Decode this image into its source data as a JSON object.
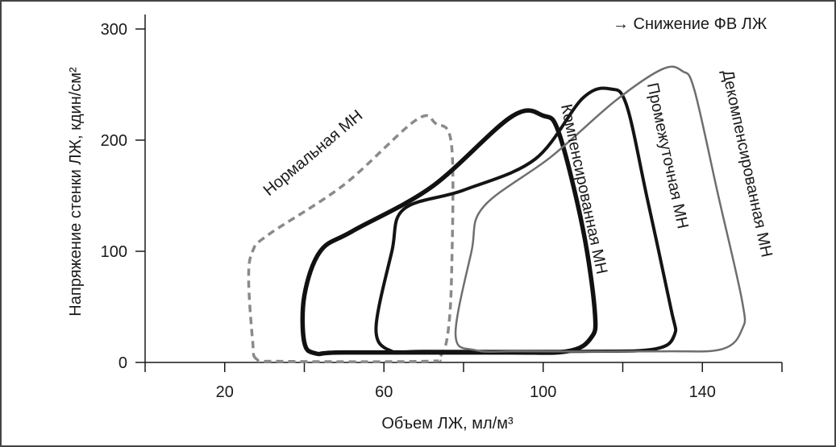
{
  "chart_data": {
    "type": "line",
    "title": "",
    "legend_note": "→ Снижение ФВ ЛЖ",
    "xlabel": "Объем ЛЖ, мл/м³",
    "ylabel": "Напряжение стенки ЛЖ, кдин/см²",
    "xlim": [
      0,
      160
    ],
    "ylim": [
      0,
      300
    ],
    "x_ticks": [
      20,
      60,
      100,
      140
    ],
    "x_tick_marks": [
      0,
      20,
      40,
      60,
      80,
      100,
      120,
      140,
      160
    ],
    "y_ticks": [
      0,
      100,
      200,
      300
    ],
    "grid": false,
    "series": [
      {
        "name": "Нормальная МН",
        "style": "dashed",
        "color": "#8a8a8a",
        "points": [
          [
            28,
            3
          ],
          [
            27,
            20
          ],
          [
            26,
            75
          ],
          [
            27,
            100
          ],
          [
            31,
            115
          ],
          [
            50,
            160
          ],
          [
            68,
            218
          ],
          [
            73,
            215
          ],
          [
            77,
            195
          ],
          [
            77,
            80
          ],
          [
            76,
            25
          ],
          [
            74,
            5
          ],
          [
            70,
            1
          ],
          [
            34,
            1
          ]
        ]
      },
      {
        "name": "Компенсированная МН",
        "style": "solid-thick",
        "color": "#111111",
        "points": [
          [
            43,
            8
          ],
          [
            40,
            18
          ],
          [
            40,
            60
          ],
          [
            44,
            100
          ],
          [
            52,
            118
          ],
          [
            72,
            158
          ],
          [
            92,
            221
          ],
          [
            100,
            222
          ],
          [
            104,
            206
          ],
          [
            110,
            120
          ],
          [
            113,
            45
          ],
          [
            112,
            22
          ],
          [
            106,
            10
          ],
          [
            90,
            9
          ],
          [
            50,
            9
          ]
        ]
      },
      {
        "name": "Промежуточная МН",
        "style": "solid",
        "color": "#141414",
        "points": [
          [
            62,
            10
          ],
          [
            58,
            30
          ],
          [
            62,
            100
          ],
          [
            65,
            138
          ],
          [
            80,
            155
          ],
          [
            98,
            183
          ],
          [
            110,
            238
          ],
          [
            117,
            246
          ],
          [
            121,
            231
          ],
          [
            126,
            150
          ],
          [
            132,
            50
          ],
          [
            133,
            25
          ],
          [
            128,
            12
          ],
          [
            110,
            10
          ],
          [
            70,
            10
          ]
        ]
      },
      {
        "name": "Декомпенсированная МН",
        "style": "solid-thin",
        "color": "#6e6e6e",
        "points": [
          [
            83,
            11
          ],
          [
            78,
            25
          ],
          [
            82,
            100
          ],
          [
            85,
            140
          ],
          [
            102,
            185
          ],
          [
            118,
            235
          ],
          [
            130,
            264
          ],
          [
            135,
            262
          ],
          [
            138,
            245
          ],
          [
            144,
            150
          ],
          [
            150,
            55
          ],
          [
            150,
            30
          ],
          [
            145,
            12
          ],
          [
            130,
            10
          ],
          [
            95,
            10
          ]
        ]
      }
    ],
    "annotations": [
      {
        "text": "Нормальная МН",
        "x": 43,
        "y": 185,
        "rotate": -40
      },
      {
        "text": "Компенсированная МН",
        "x": 109,
        "y": 155,
        "rotate": 78
      },
      {
        "text": "Промежуточная МН",
        "x": 130,
        "y": 185,
        "rotate": 78
      },
      {
        "text": "Декомпенсированная МН",
        "x": 150,
        "y": 178,
        "rotate": 78
      }
    ]
  }
}
